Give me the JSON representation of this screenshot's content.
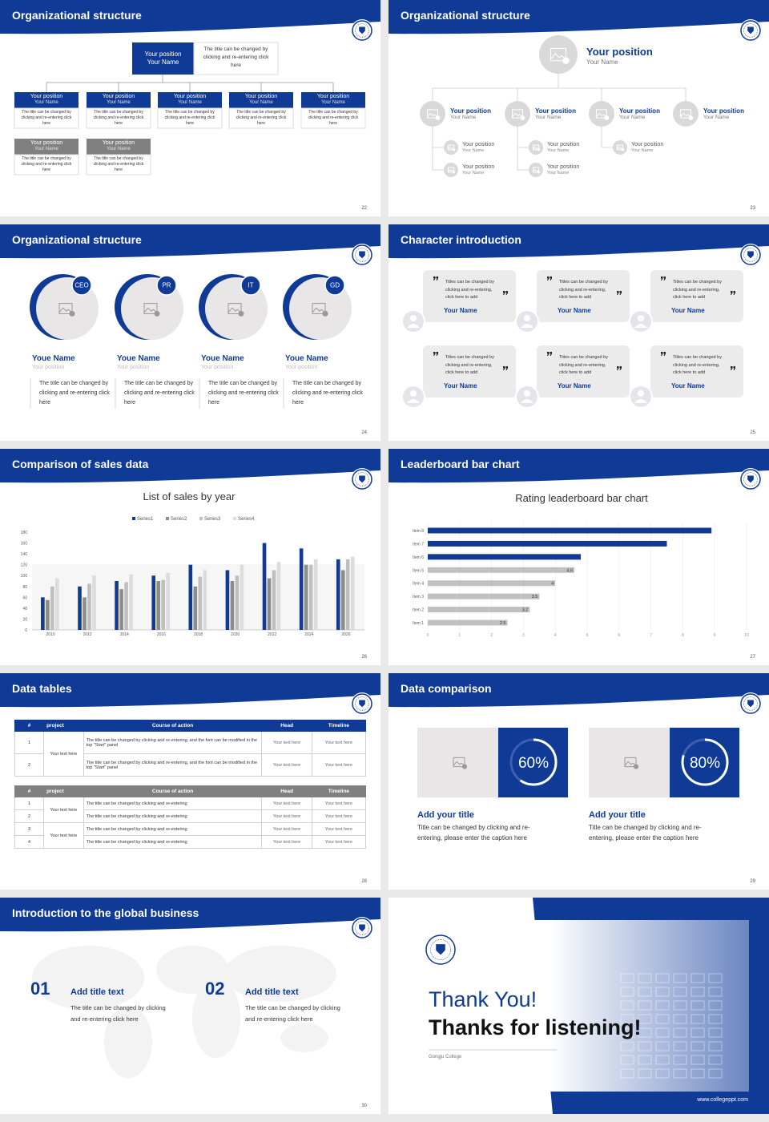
{
  "slides": [
    {
      "title": "Organizational structure",
      "page": "22",
      "top": {
        "position": "Your position",
        "name": "Your Name",
        "note": "The title can be changed by clicking and re-entering click here"
      },
      "boxes": [
        {
          "position": "Your position",
          "name": "Your Name",
          "note": "The title can be changed by clicking and re-entering click here"
        },
        {
          "position": "Your position",
          "name": "Your Name",
          "note": "The title can be changed by clicking and re-entering click here"
        },
        {
          "position": "Your position",
          "name": "Your Name",
          "note": "The title can be changed by clicking and re-entering click here"
        },
        {
          "position": "Your position",
          "name": "Your Name",
          "note": "The title can be changed by clicking and re-entering click here"
        },
        {
          "position": "Your position",
          "name": "Your Name",
          "note": "The title can be changed by clicking and re-entering click here"
        },
        {
          "position": "Your position",
          "name": "Your Name",
          "note": "The title can be changed by clicking and re-entering click here"
        },
        {
          "position": "Your position",
          "name": "Your Name",
          "note": "The title can be changed by clicking and re-entering click here"
        }
      ]
    },
    {
      "title": "Organizational structure",
      "page": "23",
      "top": {
        "position": "Your position",
        "name": "Your Name"
      },
      "groups": [
        {
          "position": "Your position",
          "name": "Your Name",
          "children": [
            {
              "position": "Your position",
              "name": "Your Name"
            },
            {
              "position": "Your position",
              "name": "Your Name"
            }
          ]
        },
        {
          "position": "Your position",
          "name": "Your Name",
          "children": [
            {
              "position": "Your position",
              "name": "Your Name"
            },
            {
              "position": "Your position",
              "name": "Your Name"
            }
          ]
        },
        {
          "position": "Your position",
          "name": "Your Name",
          "children": [
            {
              "position": "Your position",
              "name": "Your Name"
            }
          ]
        },
        {
          "position": "Your position",
          "name": "Your Name",
          "children": []
        }
      ]
    },
    {
      "title": "Organizational structure",
      "page": "24",
      "people": [
        {
          "badge": "CEO",
          "name": "Youe Name",
          "position": "Your position",
          "text": "The title can be changed by clicking and re-entering click here"
        },
        {
          "badge": "PR",
          "name": "Youe Name",
          "position": "Your position",
          "text": "The title can be changed by clicking and re-entering click here"
        },
        {
          "badge": "IT",
          "name": "Youe Name",
          "position": "Your position",
          "text": "The title can be changed by clicking and re-entering click here"
        },
        {
          "badge": "GD",
          "name": "Youe Name",
          "position": "Your position",
          "text": "The title can be changed by clicking and re-entering click here"
        }
      ]
    },
    {
      "title": "Character introduction",
      "page": "25",
      "cards": [
        {
          "quote": "Titles can be changed by clicking and re-entering, click here to add",
          "name": "Your Name"
        },
        {
          "quote": "Titles can be changed by clicking and re-entering, click here to add",
          "name": "Your Name"
        },
        {
          "quote": "Titles can be changed by clicking and re-entering, click here to add",
          "name": "Your Name"
        },
        {
          "quote": "Titles can be changed by clicking and re-entering, click here to add",
          "name": "Your Name"
        },
        {
          "quote": "Titles can be changed by clicking and re-entering, click here to add",
          "name": "Your Name"
        },
        {
          "quote": "Titles can be changed by clicking and re-entering, click here to add",
          "name": "Your Name"
        }
      ]
    },
    {
      "title": "Comparison of sales data",
      "page": "26",
      "chart": {
        "type": "bar",
        "title": "List of sales by year",
        "categories": [
          "2010",
          "2012",
          "2014",
          "2016",
          "2018",
          "2020",
          "2022",
          "2024",
          "2026"
        ],
        "series": [
          {
            "name": "Series1",
            "color": "#123a93",
            "values": [
              60,
              80,
              90,
              100,
              120,
              110,
              160,
              150,
              130
            ]
          },
          {
            "name": "Series2",
            "color": "#8c8c8c",
            "values": [
              55,
              60,
              75,
              90,
              80,
              90,
              95,
              120,
              110
            ]
          },
          {
            "name": "Series3",
            "color": "#bfbfbf",
            "values": [
              80,
              85,
              88,
              92,
              98,
              100,
              110,
              120,
              130
            ]
          },
          {
            "name": "Series4",
            "color": "#dcdcdc",
            "values": [
              95,
              100,
              102,
              105,
              110,
              120,
              125,
              130,
              135
            ]
          }
        ],
        "ylim": [
          0,
          180
        ],
        "yticks": [
          0,
          20,
          40,
          60,
          80,
          100,
          120,
          140,
          160,
          180
        ]
      }
    },
    {
      "title": "Leaderboard bar chart",
      "page": "27",
      "chart": {
        "type": "hbar",
        "title": "Rating leaderboard bar chart",
        "categories": [
          "Item 1",
          "Item 2",
          "Item 3",
          "Item 4",
          "Item 5",
          "Item 6",
          "Item 7",
          "Item 8"
        ],
        "values": [
          2.5,
          3.2,
          3.5,
          4,
          4.6,
          4.8,
          7.5,
          8.9
        ],
        "colors": [
          "#c0c0c0",
          "#c0c0c0",
          "#c0c0c0",
          "#c0c0c0",
          "#c0c0c0",
          "#123a93",
          "#123a93",
          "#123a93"
        ],
        "show_labels": [
          true,
          true,
          true,
          true,
          true,
          false,
          false,
          false
        ],
        "xlim": [
          0,
          10
        ],
        "xticks": [
          0,
          1,
          2,
          3,
          4,
          5,
          6,
          7,
          8,
          9,
          10
        ],
        "grid": true
      }
    },
    {
      "title": "Data tables",
      "page": "28",
      "table1": {
        "header": [
          "#",
          "project",
          "Course of action",
          "Head",
          "Timeline"
        ],
        "projects": [
          "Your text here"
        ],
        "rows": [
          [
            "1",
            "The title can be changed by clicking and re-entering, and the font can be modified in the top \"Start\" panel",
            "Your text here",
            "Your text here"
          ],
          [
            "2",
            "The title can be changed by clicking and re-entering, and the font can be modified in the top \"Start\" panel",
            "Your text here",
            "Your text here"
          ]
        ]
      },
      "table2": {
        "header": [
          "#",
          "project",
          "Course of action",
          "Head",
          "Timeline"
        ],
        "projects": [
          "Your text here",
          "Your text here"
        ],
        "rows": [
          [
            "1",
            "The title can be changed by clicking and re-entering",
            "Your text here",
            "Your text here"
          ],
          [
            "2",
            "The title can be changed by clicking and re-entering",
            "Your text here",
            "Your text here"
          ],
          [
            "3",
            "The title can be changed by clicking and re-entering",
            "Your text here",
            "Your text here"
          ],
          [
            "4",
            "The title can be changed by clicking and re-entering",
            "Your text here",
            "Your text here"
          ]
        ]
      }
    },
    {
      "title": "Data comparison",
      "page": "29",
      "items": [
        {
          "percent": {
            "value": 60,
            "label": "60%"
          },
          "title": "Add your title",
          "text": "Title can be changed by clicking and re-entering, please enter the caption here"
        },
        {
          "percent": {
            "value": 80,
            "label": "80%"
          },
          "title": "Add your title",
          "text": "Title can be changed by clicking and re-entering, please enter the caption here"
        }
      ]
    },
    {
      "title": "Introduction to the global business",
      "page": "30",
      "items": [
        {
          "number": "01",
          "title": "Add title text",
          "text": "The title can be changed by clicking and re-entering click here"
        },
        {
          "number": "02",
          "title": "Add title text",
          "text": "The title can be changed by clicking and re-entering click here"
        }
      ]
    },
    {
      "thanks": "Thank You!",
      "subtitle": "Thanks for listening!",
      "college": "Gongju College",
      "url": "www.collegeppt.com"
    }
  ]
}
